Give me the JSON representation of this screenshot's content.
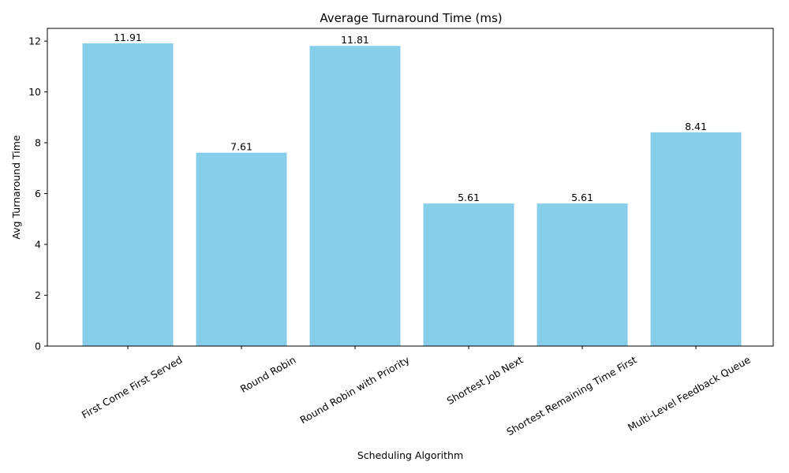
{
  "chart_data": {
    "type": "bar",
    "title": "Average Turnaround Time (ms)",
    "xlabel": "Scheduling Algorithm",
    "ylabel": "Avg Turnaround Time",
    "categories": [
      "First Come First Served",
      "Round Robin",
      "Round Robin with Priority",
      "Shortest Job Next",
      "Shortest Remaining Time First",
      "Multi-Level Feedback Queue"
    ],
    "values": [
      11.91,
      7.61,
      11.81,
      5.61,
      5.61,
      8.41
    ],
    "data_labels": [
      "11.91",
      "7.61",
      "11.81",
      "5.61",
      "5.61",
      "8.41"
    ],
    "yticks": [
      0,
      2,
      4,
      6,
      8,
      10,
      12
    ],
    "ylim": [
      0,
      12.5
    ],
    "bar_color": "#87CEEB",
    "grid": false,
    "legend": "none"
  }
}
